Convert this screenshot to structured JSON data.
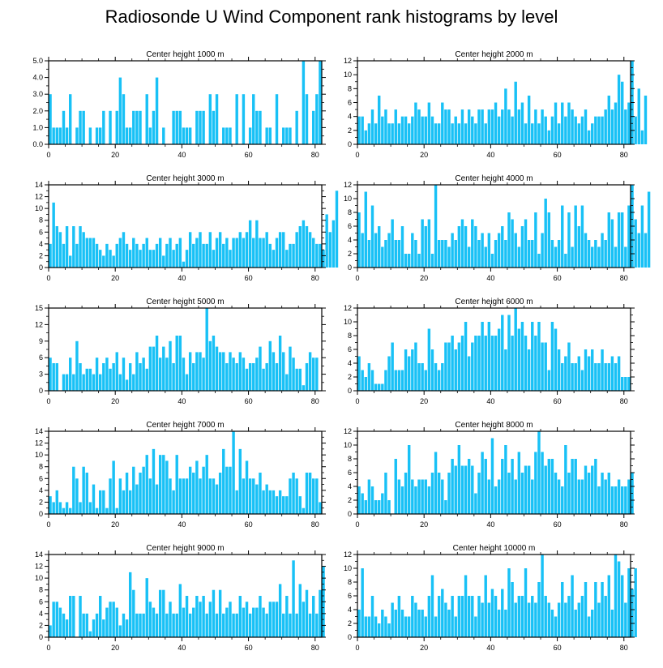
{
  "figure": {
    "title": "Radiosonde U Wind Component rank histograms by level"
  },
  "colors": {
    "bar": "#18c1f6",
    "axis": "#000000",
    "background": "#ffffff"
  },
  "chart_data": [
    {
      "type": "bar",
      "title": "Center height 1000 m",
      "xlim": [
        0,
        82
      ],
      "ylim": [
        0,
        5
      ],
      "xticks": [
        0,
        20,
        40,
        60,
        80
      ],
      "yticks": [
        0,
        1,
        2,
        3,
        4,
        5
      ],
      "ytick_labels": [
        "0.0",
        "1.0",
        "2.0",
        "3.0",
        "4.0",
        "5.0"
      ],
      "values": [
        3,
        1,
        1,
        1,
        2,
        1,
        3,
        0,
        1,
        2,
        2,
        0,
        1,
        0,
        1,
        1,
        2,
        0,
        2,
        0,
        2,
        4,
        3,
        1,
        1,
        2,
        2,
        2,
        0,
        3,
        1,
        2,
        4,
        0,
        1,
        0,
        0,
        2,
        2,
        2,
        1,
        1,
        1,
        0,
        2,
        2,
        2,
        0,
        3,
        2,
        3,
        0,
        1,
        1,
        1,
        0,
        3,
        0,
        3,
        0,
        1,
        3,
        2,
        2,
        0,
        1,
        1,
        0,
        3,
        0,
        1,
        1,
        1,
        0,
        2,
        0,
        5,
        3,
        0,
        2,
        3,
        5
      ]
    },
    {
      "type": "bar",
      "title": "Center height 2000 m",
      "xlim": [
        0,
        82
      ],
      "ylim": [
        0,
        12
      ],
      "xticks": [
        0,
        20,
        40,
        60,
        80
      ],
      "yticks": [
        0,
        2,
        4,
        6,
        8,
        10,
        12
      ],
      "ytick_labels": [
        "0",
        "2",
        "4",
        "6",
        "8",
        "10",
        "12"
      ],
      "values": [
        4,
        4,
        2,
        3,
        5,
        3,
        7,
        4,
        5,
        3,
        3,
        5,
        3,
        4,
        4,
        3,
        4,
        6,
        5,
        4,
        4,
        6,
        4,
        3,
        3,
        6,
        5,
        5,
        3,
        4,
        3,
        5,
        3,
        5,
        4,
        3,
        5,
        5,
        3,
        5,
        5,
        6,
        4,
        5,
        8,
        5,
        4,
        9,
        5,
        6,
        3,
        7,
        3,
        5,
        3,
        5,
        4,
        2,
        4,
        6,
        3,
        6,
        4,
        6,
        5,
        4,
        3,
        4,
        5,
        2,
        3,
        4,
        4,
        4,
        5,
        7,
        5,
        6,
        10,
        9,
        5,
        6,
        12,
        4,
        8,
        2,
        7
      ]
    },
    {
      "type": "bar",
      "title": "Center height 3000 m",
      "xlim": [
        0,
        82
      ],
      "ylim": [
        0,
        14
      ],
      "xticks": [
        0,
        20,
        40,
        60,
        80
      ],
      "yticks": [
        0,
        2,
        4,
        6,
        8,
        10,
        12,
        14
      ],
      "ytick_labels": [
        "0",
        "2",
        "4",
        "6",
        "8",
        "10",
        "12",
        "14"
      ],
      "values": [
        4,
        11,
        7,
        6,
        4,
        7,
        2,
        7,
        4,
        7,
        6,
        5,
        5,
        5,
        4,
        3,
        2,
        4,
        3,
        2,
        4,
        5,
        6,
        4,
        3,
        5,
        4,
        3,
        4,
        5,
        3,
        3,
        4,
        5,
        2,
        4,
        5,
        3,
        4,
        5,
        1,
        3,
        6,
        4,
        5,
        6,
        4,
        4,
        6,
        3,
        5,
        6,
        4,
        5,
        3,
        5,
        5,
        6,
        5,
        6,
        8,
        5,
        8,
        5,
        5,
        6,
        4,
        3,
        5,
        6,
        6,
        3,
        4,
        4,
        6,
        7,
        8,
        7,
        6,
        5,
        4,
        4,
        3,
        9,
        6,
        8,
        13
      ]
    },
    {
      "type": "bar",
      "title": "Center height 4000 m",
      "xlim": [
        0,
        82
      ],
      "ylim": [
        0,
        12
      ],
      "xticks": [
        0,
        20,
        40,
        60,
        80
      ],
      "yticks": [
        0,
        2,
        4,
        6,
        8,
        10,
        12
      ],
      "ytick_labels": [
        "0",
        "2",
        "4",
        "6",
        "8",
        "10",
        "12"
      ],
      "values": [
        8,
        5,
        11,
        4,
        9,
        5,
        6,
        3,
        4,
        5,
        7,
        4,
        4,
        6,
        2,
        2,
        5,
        4,
        2,
        7,
        6,
        7,
        2,
        12,
        4,
        4,
        4,
        3,
        5,
        4,
        6,
        7,
        6,
        3,
        7,
        6,
        4,
        5,
        3,
        5,
        2,
        4,
        5,
        6,
        4,
        8,
        7,
        5,
        3,
        6,
        7,
        4,
        4,
        8,
        2,
        5,
        10,
        8,
        4,
        3,
        4,
        9,
        2,
        8,
        3,
        9,
        6,
        9,
        5,
        4,
        3,
        4,
        3,
        5,
        4,
        8,
        7,
        3,
        8,
        8,
        3,
        9,
        12,
        7,
        5,
        9,
        5,
        11
      ]
    },
    {
      "type": "bar",
      "title": "Center height 5000 m",
      "xlim": [
        0,
        82
      ],
      "ylim": [
        0,
        15
      ],
      "xticks": [
        0,
        20,
        40,
        60,
        80
      ],
      "yticks": [
        0,
        3,
        6,
        9,
        12,
        15
      ],
      "ytick_labels": [
        "0",
        "3",
        "6",
        "9",
        "12",
        "15"
      ],
      "values": [
        6,
        5,
        5,
        0,
        3,
        3,
        6,
        3,
        9,
        5,
        3,
        4,
        4,
        3,
        6,
        3,
        5,
        6,
        4,
        5,
        7,
        3,
        6,
        2,
        5,
        3,
        7,
        5,
        6,
        4,
        8,
        8,
        10,
        6,
        8,
        6,
        9,
        5,
        10,
        10,
        6,
        3,
        7,
        5,
        7,
        7,
        6,
        15,
        9,
        10,
        8,
        7,
        7,
        5,
        7,
        6,
        5,
        7,
        6,
        4,
        5,
        5,
        6,
        8,
        4,
        5,
        9,
        7,
        5,
        10,
        7,
        3,
        8,
        6,
        4,
        4,
        1,
        5,
        7,
        6,
        6
      ]
    },
    {
      "type": "bar",
      "title": "Center height 6000 m",
      "xlim": [
        0,
        82
      ],
      "ylim": [
        0,
        12
      ],
      "xticks": [
        0,
        20,
        40,
        60,
        80
      ],
      "yticks": [
        0,
        2,
        4,
        6,
        8,
        10,
        12
      ],
      "ytick_labels": [
        "0",
        "2",
        "4",
        "6",
        "8",
        "10",
        "12"
      ],
      "values": [
        5,
        3,
        2,
        4,
        3,
        1,
        1,
        1,
        3,
        5,
        7,
        3,
        3,
        3,
        6,
        5,
        6,
        7,
        4,
        4,
        3,
        9,
        6,
        4,
        3,
        4,
        7,
        7,
        8,
        6,
        7,
        8,
        10,
        5,
        7,
        8,
        8,
        10,
        8,
        10,
        8,
        8,
        9,
        11,
        6,
        11,
        8,
        12,
        9,
        10,
        8,
        6,
        10,
        8,
        10,
        7,
        7,
        3,
        10,
        9,
        6,
        4,
        5,
        7,
        4,
        4,
        5,
        3,
        6,
        5,
        6,
        4,
        4,
        6,
        4,
        4,
        5,
        4,
        5,
        2,
        2,
        2
      ]
    },
    {
      "type": "bar",
      "title": "Center height 7000 m",
      "xlim": [
        0,
        82
      ],
      "ylim": [
        0,
        14
      ],
      "xticks": [
        0,
        20,
        40,
        60,
        80
      ],
      "yticks": [
        0,
        2,
        4,
        6,
        8,
        10,
        12,
        14
      ],
      "ytick_labels": [
        "0",
        "2",
        "4",
        "6",
        "8",
        "10",
        "12",
        "14"
      ],
      "values": [
        3,
        2,
        4,
        2,
        1,
        2,
        1,
        8,
        6,
        2,
        8,
        7,
        2,
        5,
        1,
        4,
        4,
        1,
        6,
        9,
        1,
        6,
        4,
        7,
        4,
        8,
        5,
        7,
        8,
        10,
        6,
        11,
        5,
        10,
        10,
        9,
        6,
        4,
        10,
        6,
        6,
        6,
        8,
        7,
        9,
        6,
        8,
        10,
        6,
        6,
        5,
        7,
        11,
        8,
        8,
        14,
        4,
        11,
        6,
        9,
        6,
        6,
        5,
        7,
        4,
        5,
        4,
        4,
        3,
        4,
        3,
        3,
        6,
        7,
        6,
        3,
        1,
        7,
        7,
        6,
        6,
        2
      ]
    },
    {
      "type": "bar",
      "title": "Center height 8000 m",
      "xlim": [
        0,
        82
      ],
      "ylim": [
        0,
        12
      ],
      "xticks": [
        0,
        20,
        40,
        60,
        80
      ],
      "yticks": [
        0,
        2,
        4,
        6,
        8,
        10,
        12
      ],
      "ytick_labels": [
        "0",
        "2",
        "4",
        "6",
        "8",
        "10",
        "12"
      ],
      "values": [
        4,
        3,
        2,
        5,
        4,
        2,
        2,
        3,
        6,
        2,
        0,
        8,
        5,
        4,
        6,
        10,
        5,
        4,
        5,
        5,
        5,
        4,
        6,
        9,
        6,
        5,
        2,
        6,
        8,
        7,
        10,
        7,
        7,
        8,
        7,
        3,
        6,
        9,
        8,
        5,
        11,
        4,
        5,
        8,
        10,
        6,
        8,
        5,
        9,
        6,
        7,
        7,
        5,
        9,
        12,
        9,
        7,
        8,
        8,
        6,
        5,
        4,
        10,
        6,
        8,
        8,
        5,
        5,
        7,
        6,
        7,
        8,
        4,
        6,
        5,
        6,
        4,
        4,
        5,
        4,
        4,
        5,
        6
      ]
    },
    {
      "type": "bar",
      "title": "Center height 9000 m",
      "xlim": [
        0,
        82
      ],
      "ylim": [
        0,
        14
      ],
      "xticks": [
        0,
        20,
        40,
        60,
        80
      ],
      "yticks": [
        0,
        2,
        4,
        6,
        8,
        10,
        12,
        14
      ],
      "ytick_labels": [
        "0",
        "2",
        "4",
        "6",
        "8",
        "10",
        "12",
        "14"
      ],
      "values": [
        2,
        6,
        6,
        5,
        4,
        3,
        7,
        7,
        0,
        7,
        4,
        4,
        1,
        3,
        4,
        7,
        3,
        5,
        6,
        6,
        5,
        2,
        4,
        3,
        11,
        8,
        4,
        4,
        4,
        10,
        6,
        5,
        4,
        8,
        8,
        4,
        6,
        4,
        4,
        9,
        5,
        7,
        4,
        5,
        7,
        6,
        7,
        4,
        6,
        8,
        4,
        8,
        4,
        5,
        6,
        4,
        4,
        7,
        5,
        6,
        4,
        5,
        5,
        7,
        5,
        4,
        6,
        6,
        6,
        9,
        4,
        7,
        4,
        13,
        4,
        9,
        6,
        8,
        4,
        7,
        4,
        8,
        12
      ]
    },
    {
      "type": "bar",
      "title": "Center height 10000 m",
      "xlim": [
        0,
        82
      ],
      "ylim": [
        0,
        12
      ],
      "xticks": [
        0,
        20,
        40,
        60,
        80
      ],
      "yticks": [
        0,
        2,
        4,
        6,
        8,
        10,
        12
      ],
      "ytick_labels": [
        "0",
        "2",
        "4",
        "6",
        "8",
        "10",
        "12"
      ],
      "values": [
        4,
        10,
        3,
        3,
        6,
        3,
        2,
        4,
        3,
        2,
        5,
        4,
        6,
        4,
        3,
        3,
        6,
        5,
        4,
        4,
        3,
        6,
        9,
        3,
        6,
        7,
        5,
        4,
        6,
        3,
        6,
        6,
        9,
        6,
        6,
        3,
        6,
        5,
        9,
        5,
        7,
        6,
        4,
        7,
        4,
        10,
        8,
        5,
        6,
        6,
        10,
        5,
        6,
        5,
        8,
        12,
        6,
        5,
        4,
        3,
        5,
        8,
        5,
        6,
        9,
        4,
        5,
        6,
        8,
        3,
        4,
        8,
        5,
        8,
        6,
        9,
        4,
        12,
        11,
        9,
        5,
        10,
        7,
        10
      ]
    }
  ]
}
